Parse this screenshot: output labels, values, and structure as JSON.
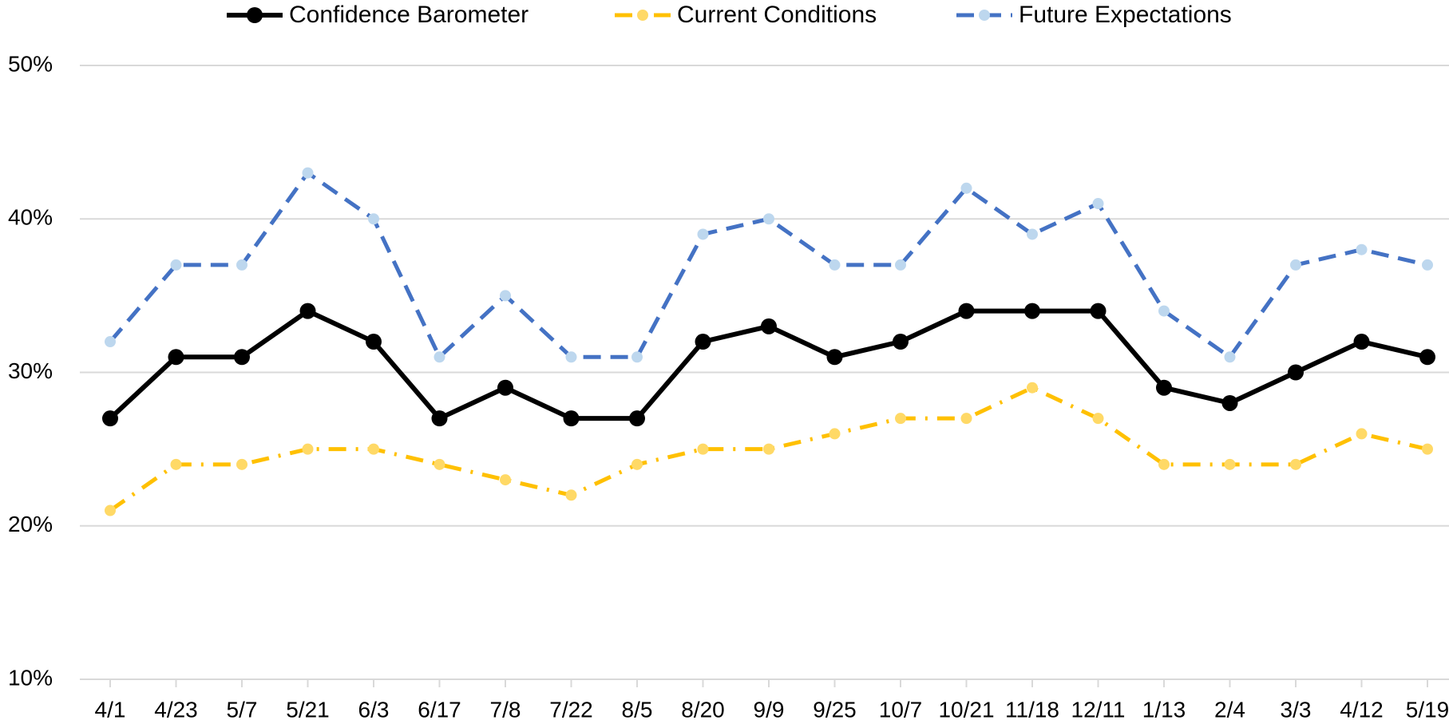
{
  "chart_data": {
    "type": "line",
    "categories": [
      "4/1",
      "4/23",
      "5/7",
      "5/21",
      "6/3",
      "6/17",
      "7/8",
      "7/22",
      "8/5",
      "8/20",
      "9/9",
      "9/25",
      "10/7",
      "10/21",
      "11/18",
      "12/11",
      "1/13",
      "2/4",
      "3/3",
      "4/12",
      "5/19"
    ],
    "series": [
      {
        "name": "Confidence Barometer",
        "color": "#000000",
        "marker_color": "#000000",
        "dash": "solid",
        "values": [
          27,
          31,
          31,
          34,
          32,
          27,
          29,
          27,
          27,
          32,
          33,
          31,
          32,
          34,
          34,
          34,
          29,
          28,
          30,
          32,
          31
        ]
      },
      {
        "name": "Current Conditions",
        "color": "#FFC000",
        "marker_color": "#FFD966",
        "dash": "dashdot",
        "values": [
          21,
          24,
          24,
          25,
          25,
          24,
          23,
          22,
          24,
          25,
          25,
          26,
          27,
          27,
          29,
          27,
          24,
          24,
          24,
          26,
          25
        ]
      },
      {
        "name": "Future Expectations",
        "color": "#4472C4",
        "marker_color": "#BDD7EE",
        "dash": "dash",
        "values": [
          32,
          37,
          37,
          43,
          40,
          31,
          35,
          31,
          31,
          39,
          40,
          37,
          37,
          42,
          39,
          41,
          34,
          31,
          37,
          38,
          37
        ]
      }
    ],
    "ylim": [
      10,
      50
    ],
    "yticks": [
      {
        "value": 10,
        "label": "10%"
      },
      {
        "value": 20,
        "label": "20%"
      },
      {
        "value": 30,
        "label": "30%"
      },
      {
        "value": 40,
        "label": "40%"
      },
      {
        "value": 50,
        "label": "50%"
      }
    ],
    "grid": true,
    "legend": "top"
  }
}
